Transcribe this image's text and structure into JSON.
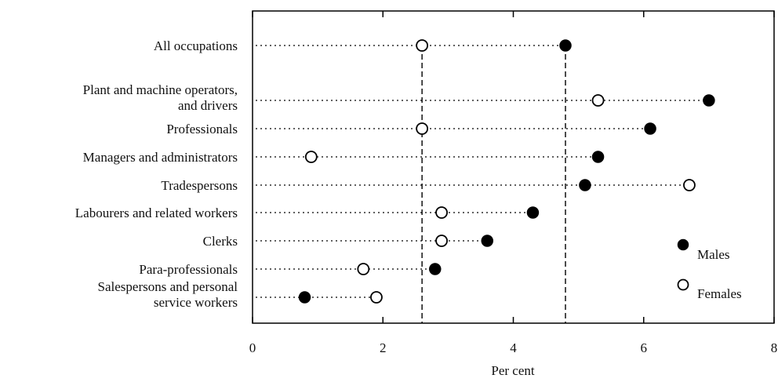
{
  "chart_data": {
    "type": "scatter",
    "xlabel": "Per cent",
    "xlim": [
      0,
      8
    ],
    "xticks": [
      0,
      2,
      4,
      6,
      8
    ],
    "legend": {
      "placement": "right",
      "entries": [
        "Males",
        "Females"
      ]
    },
    "reference_lines": {
      "females_all": 2.6,
      "males_all": 4.8
    },
    "categories": [
      {
        "label": [
          "All occupations"
        ],
        "males": 4.8,
        "females": 2.6
      },
      {
        "label": [
          "Plant and machine operators,",
          "and drivers"
        ],
        "males": 7.0,
        "females": 5.3
      },
      {
        "label": [
          "Professionals"
        ],
        "males": 6.1,
        "females": 2.6
      },
      {
        "label": [
          "Managers and administrators"
        ],
        "males": 5.3,
        "females": 0.9
      },
      {
        "label": [
          "Tradespersons"
        ],
        "males": 5.1,
        "females": 6.7
      },
      {
        "label": [
          "Labourers and related workers"
        ],
        "males": 4.3,
        "females": 2.9
      },
      {
        "label": [
          "Clerks"
        ],
        "males": 3.6,
        "females": 2.9
      },
      {
        "label": [
          "Para-professionals"
        ],
        "males": 2.8,
        "females": 1.7
      },
      {
        "label": [
          "Salespersons and personal",
          "service workers"
        ],
        "males": 0.8,
        "females": 1.9
      }
    ],
    "series": [
      {
        "name": "Males",
        "marker": "filled-circle",
        "color": "#000000"
      },
      {
        "name": "Females",
        "marker": "open-circle",
        "color": "#000000"
      }
    ]
  }
}
